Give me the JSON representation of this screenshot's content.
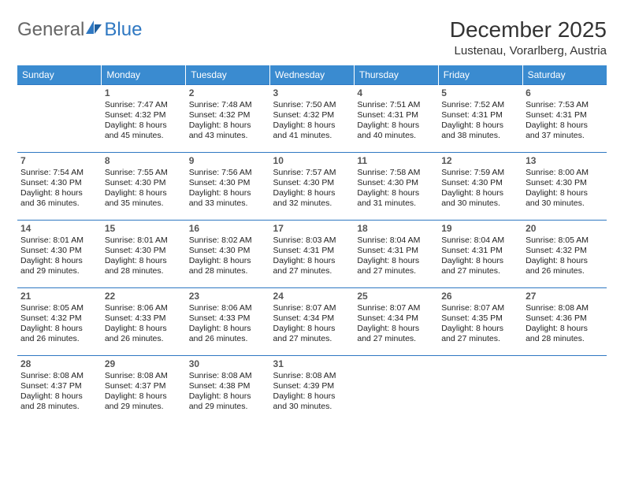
{
  "brand": {
    "part1": "General",
    "part2": "Blue"
  },
  "header": {
    "month_title": "December 2025",
    "location": "Lustenau, Vorarlberg, Austria"
  },
  "colors": {
    "header_bg": "#3a8bd0",
    "header_text": "#ffffff",
    "row_border": "#2f78c2",
    "text": "#222222",
    "daynum": "#555555",
    "brand_gray": "#666666",
    "brand_blue": "#2f78c2"
  },
  "days_of_week": [
    "Sunday",
    "Monday",
    "Tuesday",
    "Wednesday",
    "Thursday",
    "Friday",
    "Saturday"
  ],
  "weeks": [
    [
      {
        "n": "",
        "sr": "",
        "ss": "",
        "dl": ""
      },
      {
        "n": "1",
        "sr": "7:47 AM",
        "ss": "4:32 PM",
        "dl": "8 hours and 45 minutes."
      },
      {
        "n": "2",
        "sr": "7:48 AM",
        "ss": "4:32 PM",
        "dl": "8 hours and 43 minutes."
      },
      {
        "n": "3",
        "sr": "7:50 AM",
        "ss": "4:32 PM",
        "dl": "8 hours and 41 minutes."
      },
      {
        "n": "4",
        "sr": "7:51 AM",
        "ss": "4:31 PM",
        "dl": "8 hours and 40 minutes."
      },
      {
        "n": "5",
        "sr": "7:52 AM",
        "ss": "4:31 PM",
        "dl": "8 hours and 38 minutes."
      },
      {
        "n": "6",
        "sr": "7:53 AM",
        "ss": "4:31 PM",
        "dl": "8 hours and 37 minutes."
      }
    ],
    [
      {
        "n": "7",
        "sr": "7:54 AM",
        "ss": "4:30 PM",
        "dl": "8 hours and 36 minutes."
      },
      {
        "n": "8",
        "sr": "7:55 AM",
        "ss": "4:30 PM",
        "dl": "8 hours and 35 minutes."
      },
      {
        "n": "9",
        "sr": "7:56 AM",
        "ss": "4:30 PM",
        "dl": "8 hours and 33 minutes."
      },
      {
        "n": "10",
        "sr": "7:57 AM",
        "ss": "4:30 PM",
        "dl": "8 hours and 32 minutes."
      },
      {
        "n": "11",
        "sr": "7:58 AM",
        "ss": "4:30 PM",
        "dl": "8 hours and 31 minutes."
      },
      {
        "n": "12",
        "sr": "7:59 AM",
        "ss": "4:30 PM",
        "dl": "8 hours and 30 minutes."
      },
      {
        "n": "13",
        "sr": "8:00 AM",
        "ss": "4:30 PM",
        "dl": "8 hours and 30 minutes."
      }
    ],
    [
      {
        "n": "14",
        "sr": "8:01 AM",
        "ss": "4:30 PM",
        "dl": "8 hours and 29 minutes."
      },
      {
        "n": "15",
        "sr": "8:01 AM",
        "ss": "4:30 PM",
        "dl": "8 hours and 28 minutes."
      },
      {
        "n": "16",
        "sr": "8:02 AM",
        "ss": "4:30 PM",
        "dl": "8 hours and 28 minutes."
      },
      {
        "n": "17",
        "sr": "8:03 AM",
        "ss": "4:31 PM",
        "dl": "8 hours and 27 minutes."
      },
      {
        "n": "18",
        "sr": "8:04 AM",
        "ss": "4:31 PM",
        "dl": "8 hours and 27 minutes."
      },
      {
        "n": "19",
        "sr": "8:04 AM",
        "ss": "4:31 PM",
        "dl": "8 hours and 27 minutes."
      },
      {
        "n": "20",
        "sr": "8:05 AM",
        "ss": "4:32 PM",
        "dl": "8 hours and 26 minutes."
      }
    ],
    [
      {
        "n": "21",
        "sr": "8:05 AM",
        "ss": "4:32 PM",
        "dl": "8 hours and 26 minutes."
      },
      {
        "n": "22",
        "sr": "8:06 AM",
        "ss": "4:33 PM",
        "dl": "8 hours and 26 minutes."
      },
      {
        "n": "23",
        "sr": "8:06 AM",
        "ss": "4:33 PM",
        "dl": "8 hours and 26 minutes."
      },
      {
        "n": "24",
        "sr": "8:07 AM",
        "ss": "4:34 PM",
        "dl": "8 hours and 27 minutes."
      },
      {
        "n": "25",
        "sr": "8:07 AM",
        "ss": "4:34 PM",
        "dl": "8 hours and 27 minutes."
      },
      {
        "n": "26",
        "sr": "8:07 AM",
        "ss": "4:35 PM",
        "dl": "8 hours and 27 minutes."
      },
      {
        "n": "27",
        "sr": "8:08 AM",
        "ss": "4:36 PM",
        "dl": "8 hours and 28 minutes."
      }
    ],
    [
      {
        "n": "28",
        "sr": "8:08 AM",
        "ss": "4:37 PM",
        "dl": "8 hours and 28 minutes."
      },
      {
        "n": "29",
        "sr": "8:08 AM",
        "ss": "4:37 PM",
        "dl": "8 hours and 29 minutes."
      },
      {
        "n": "30",
        "sr": "8:08 AM",
        "ss": "4:38 PM",
        "dl": "8 hours and 29 minutes."
      },
      {
        "n": "31",
        "sr": "8:08 AM",
        "ss": "4:39 PM",
        "dl": "8 hours and 30 minutes."
      },
      {
        "n": "",
        "sr": "",
        "ss": "",
        "dl": ""
      },
      {
        "n": "",
        "sr": "",
        "ss": "",
        "dl": ""
      },
      {
        "n": "",
        "sr": "",
        "ss": "",
        "dl": ""
      }
    ]
  ],
  "labels": {
    "sunrise": "Sunrise: ",
    "sunset": "Sunset: ",
    "daylight": "Daylight: "
  }
}
